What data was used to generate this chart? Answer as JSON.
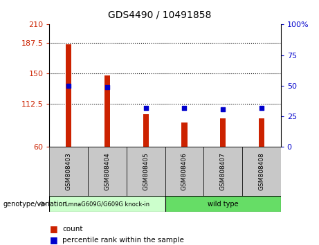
{
  "title": "GDS4490 / 10491858",
  "samples": [
    "GSM808403",
    "GSM808404",
    "GSM808405",
    "GSM808406",
    "GSM808407",
    "GSM808408"
  ],
  "bar_values": [
    186,
    148,
    100,
    90,
    95,
    95
  ],
  "percentile_values": [
    50,
    49,
    32,
    32,
    31,
    32
  ],
  "ylim_left": [
    60,
    210
  ],
  "ylim_right": [
    0,
    100
  ],
  "yticks_left": [
    60,
    112.5,
    150,
    187.5,
    210
  ],
  "yticks_right": [
    0,
    25,
    50,
    75,
    100
  ],
  "bar_color": "#cc2200",
  "square_color": "#0000cc",
  "group1_label": "LmnaG609G/G609G knock-in",
  "group2_label": "wild type",
  "group1_color": "#ccffcc",
  "group2_color": "#66dd66",
  "genotype_label": "genotype/variation",
  "legend_count": "count",
  "legend_percentile": "percentile rank within the sample",
  "sample_bg": "#c8c8c8",
  "bar_width": 0.15
}
